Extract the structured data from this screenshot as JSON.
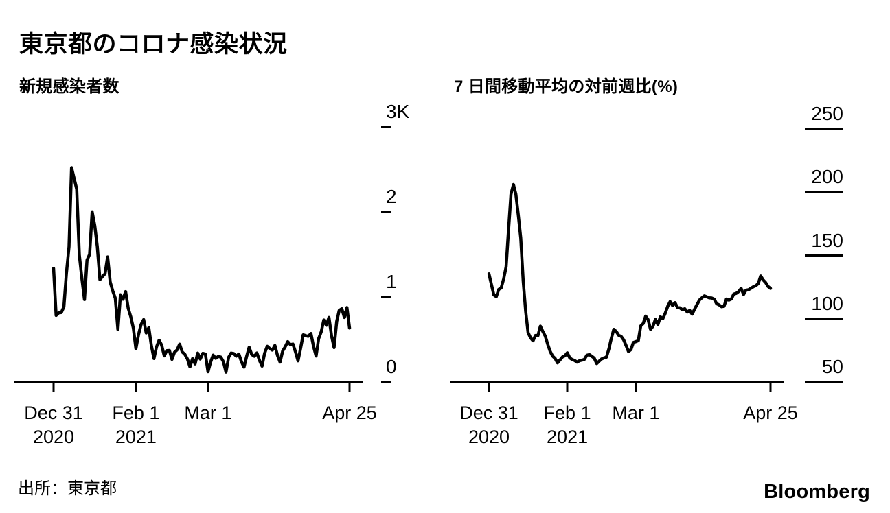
{
  "title": "東京都のコロナ感染状況",
  "source": "出所：東京都",
  "brand": "Bloomberg",
  "chart_data": [
    {
      "type": "line",
      "title": "新規感染者数",
      "x_start_date": "2020-12-31",
      "x_end_date": "2021-04-25",
      "frequency": "daily",
      "x_tick_labels": [
        [
          "Dec 31",
          "2020"
        ],
        [
          "Feb 1",
          "2021"
        ],
        [
          "Mar 1"
        ],
        [
          "Apr 25"
        ]
      ],
      "x_tick_days": [
        0,
        32,
        60,
        115
      ],
      "y_tick_labels": [
        "3K",
        "2",
        "1",
        "0"
      ],
      "y_tick_values": [
        3000,
        2000,
        1000,
        0
      ],
      "ylim": [
        0,
        3000
      ],
      "grid": false,
      "legend": "none",
      "line_color": "#000000",
      "values": [
        1337,
        783,
        814,
        816,
        884,
        1278,
        1591,
        2520,
        2392,
        2268,
        1494,
        1219,
        970,
        1433,
        1502,
        2001,
        1839,
        1592,
        1204,
        1240,
        1274,
        1471,
        1175,
        1070,
        986,
        618,
        1026,
        973,
        1064,
        868,
        769,
        633,
        393,
        556,
        676,
        734,
        577,
        639,
        429,
        276,
        412,
        491,
        434,
        307,
        369,
        371,
        266,
        350,
        378,
        445,
        353,
        327,
        272,
        178,
        275,
        213,
        340,
        270,
        337,
        329,
        121,
        232,
        316,
        279,
        301,
        293,
        237,
        116,
        290,
        340,
        335,
        304,
        330,
        239,
        175,
        300,
        409,
        323,
        303,
        342,
        256,
        187,
        337,
        420,
        394,
        376,
        430,
        313,
        234,
        364,
        414,
        475,
        440,
        446,
        355,
        249,
        399,
        555,
        545,
        537,
        570,
        421,
        306,
        510,
        591,
        729,
        667,
        759,
        543,
        405,
        711,
        843,
        861,
        759,
        876,
        635
      ]
    },
    {
      "type": "line",
      "title": "7 日間移動平均の対前週比(%)",
      "x_start_date": "2020-12-31",
      "x_end_date": "2021-04-25",
      "frequency": "daily",
      "x_tick_labels": [
        [
          "Dec 31",
          "2020"
        ],
        [
          "Feb 1",
          "2021"
        ],
        [
          "Mar 1"
        ],
        [
          "Apr 25"
        ]
      ],
      "x_tick_days": [
        0,
        32,
        60,
        115
      ],
      "y_tick_labels": [
        "250",
        "200",
        "150",
        "100",
        "50"
      ],
      "y_tick_values": [
        250,
        200,
        150,
        100,
        50
      ],
      "ylim": [
        50,
        250
      ],
      "grid": false,
      "legend": "none",
      "line_color": "#000000",
      "values": [
        135.5,
        127.1,
        118.9,
        117.5,
        123.2,
        124.3,
        131.4,
        141.0,
        169.9,
        198.4,
        206.1,
        198.4,
        181.7,
        163.9,
        129.8,
        105.8,
        89.0,
        84.9,
        82.6,
        86.8,
        86.6,
        94.2,
        90.0,
        86.3,
        79.8,
        74.3,
        70.5,
        68.7,
        65.1,
        67.4,
        69.8,
        70.7,
        73.1,
        69.0,
        67.8,
        67.0,
        65.7,
        66.8,
        67.3,
        67.9,
        71.2,
        71.7,
        70.4,
        68.9,
        64.6,
        66.4,
        68.2,
        69.1,
        69.6,
        76.3,
        84.7,
        91.6,
        89.9,
        86.9,
        86.1,
        83.4,
        78.8,
        74.1,
        75.7,
        81.2,
        81.9,
        82.7,
        94.3,
        96.2,
        102.1,
        99.3,
        91.6,
        94.1,
        99.5,
        95.4,
        101.5,
        100.0,
        104.3,
        109.8,
        113.5,
        110.4,
        112.7,
        108.8,
        108.6,
        107.1,
        107.9,
        105.3,
        106.6,
        103.6,
        107.6,
        111.2,
        114.8,
        116.6,
        118.1,
        117.3,
        116.5,
        116.4,
        115.5,
        111.9,
        111.0,
        109.5,
        109.8,
        115.6,
        114.7,
        115.6,
        119.5,
        120.1,
        121.5,
        124.0,
        119.2,
        122.6,
        122.9,
        124.1,
        125.3,
        126.1,
        127.9,
        133.8,
        130.7,
        128.6,
        125.5,
        124.0
      ]
    }
  ]
}
